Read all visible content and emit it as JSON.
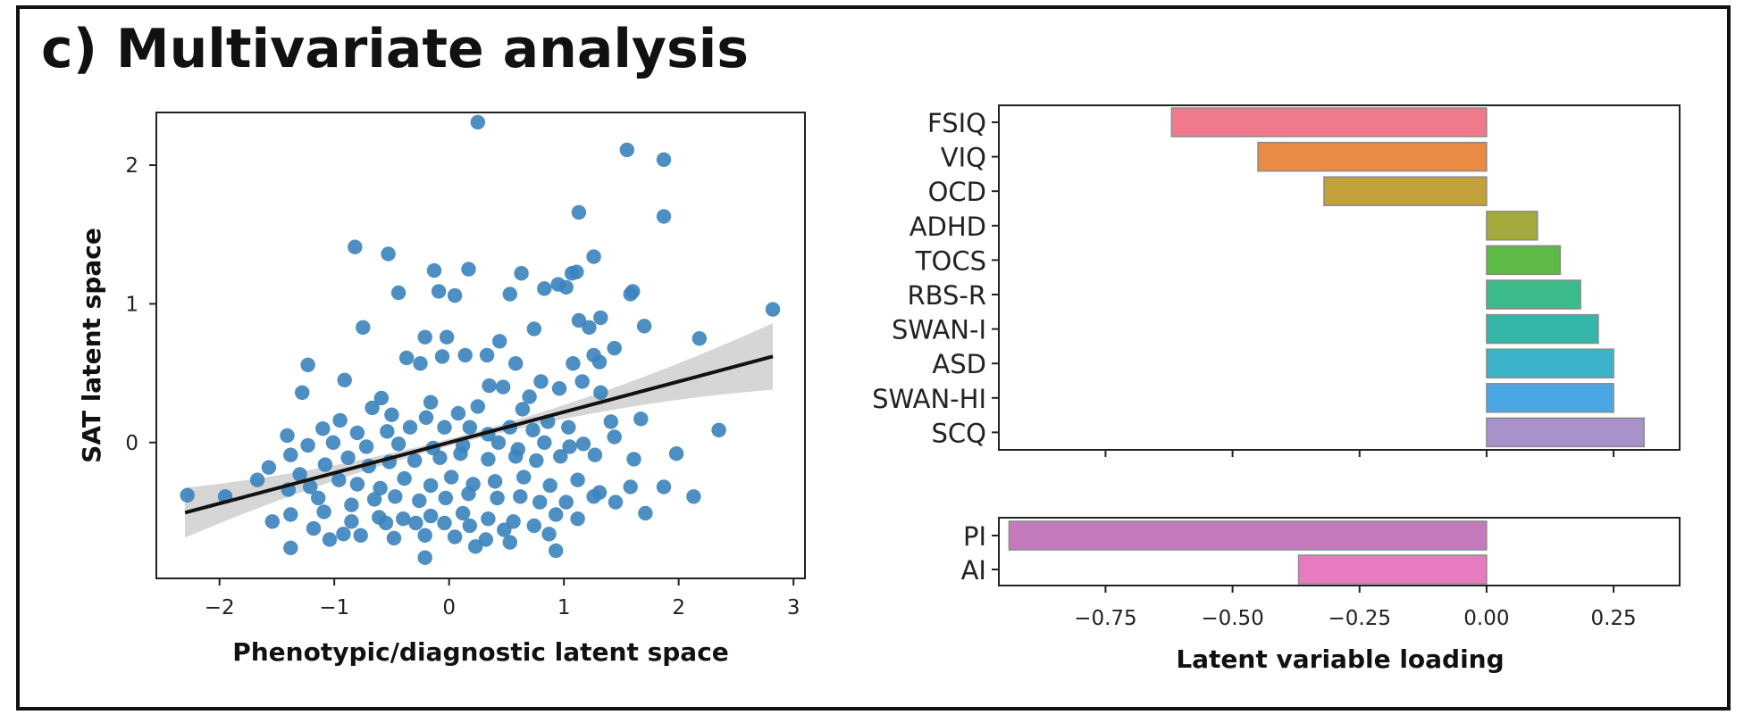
{
  "panel_title": "c) Multivariate analysis",
  "chart_data": [
    {
      "type": "scatter",
      "xlabel": "Phenotypic/diagnostic latent space",
      "ylabel": "SAT latent space",
      "xlim": [
        -2.55,
        3.1
      ],
      "ylim": [
        -0.98,
        2.38
      ],
      "xticks": [
        -2,
        -1,
        0,
        1,
        2,
        3
      ],
      "xtick_labels": [
        "−2",
        "−1",
        "0",
        "1",
        "2",
        "3"
      ],
      "yticks": [
        0,
        1,
        2
      ],
      "ytick_labels": [
        "0",
        "1",
        "2"
      ],
      "grid": false,
      "point_color": "#3a83bd",
      "regression": {
        "slope": 0.22,
        "intercept": 0.0,
        "line_color": "#111111",
        "band_color": "#cfcfcf"
      },
      "points": [
        [
          0.25,
          2.31
        ],
        [
          1.55,
          2.11
        ],
        [
          1.87,
          2.04
        ],
        [
          1.87,
          1.63
        ],
        [
          1.13,
          1.66
        ],
        [
          -0.82,
          1.41
        ],
        [
          -0.53,
          1.36
        ],
        [
          -0.13,
          1.24
        ],
        [
          0.17,
          1.25
        ],
        [
          0.63,
          1.22
        ],
        [
          1.07,
          1.22
        ],
        [
          1.26,
          1.34
        ],
        [
          1.6,
          1.09
        ],
        [
          -0.44,
          1.08
        ],
        [
          -0.09,
          1.09
        ],
        [
          0.05,
          1.06
        ],
        [
          0.53,
          1.07
        ],
        [
          0.83,
          1.11
        ],
        [
          0.95,
          1.14
        ],
        [
          1.02,
          1.12
        ],
        [
          1.11,
          1.23
        ],
        [
          1.58,
          1.07
        ],
        [
          2.82,
          0.96
        ],
        [
          1.32,
          0.9
        ],
        [
          1.13,
          0.88
        ],
        [
          1.22,
          0.83
        ],
        [
          1.7,
          0.84
        ],
        [
          -0.75,
          0.83
        ],
        [
          -0.21,
          0.76
        ],
        [
          -0.02,
          0.76
        ],
        [
          0.44,
          0.73
        ],
        [
          0.74,
          0.82
        ],
        [
          2.18,
          0.75
        ],
        [
          -0.37,
          0.61
        ],
        [
          -0.25,
          0.57
        ],
        [
          -0.06,
          0.62
        ],
        [
          0.14,
          0.63
        ],
        [
          0.33,
          0.63
        ],
        [
          0.58,
          0.57
        ],
        [
          1.08,
          0.57
        ],
        [
          1.26,
          0.63
        ],
        [
          1.31,
          0.58
        ],
        [
          1.44,
          0.68
        ],
        [
          -1.23,
          0.56
        ],
        [
          -0.91,
          0.45
        ],
        [
          -1.28,
          0.36
        ],
        [
          -0.59,
          0.32
        ],
        [
          -0.16,
          0.29
        ],
        [
          0.35,
          0.41
        ],
        [
          0.47,
          0.4
        ],
        [
          0.8,
          0.44
        ],
        [
          0.96,
          0.39
        ],
        [
          1.16,
          0.44
        ],
        [
          1.32,
          0.36
        ],
        [
          0.7,
          0.33
        ],
        [
          -0.67,
          0.25
        ],
        [
          -0.5,
          0.2
        ],
        [
          -0.2,
          0.18
        ],
        [
          0.08,
          0.21
        ],
        [
          0.25,
          0.26
        ],
        [
          0.64,
          0.24
        ],
        [
          0.86,
          0.15
        ],
        [
          1.41,
          0.15
        ],
        [
          1.67,
          0.17
        ],
        [
          -0.95,
          0.16
        ],
        [
          -1.1,
          0.1
        ],
        [
          -0.8,
          0.07
        ],
        [
          -0.54,
          0.08
        ],
        [
          -0.34,
          0.11
        ],
        [
          -0.04,
          0.11
        ],
        [
          0.18,
          0.11
        ],
        [
          0.34,
          0.06
        ],
        [
          0.53,
          0.11
        ],
        [
          0.73,
          0.09
        ],
        [
          1.04,
          0.11
        ],
        [
          1.44,
          0.04
        ],
        [
          2.35,
          0.09
        ],
        [
          -1.41,
          0.05
        ],
        [
          -1.23,
          -0.02
        ],
        [
          -1.01,
          0.0
        ],
        [
          -0.72,
          -0.03
        ],
        [
          -0.44,
          -0.01
        ],
        [
          -0.14,
          -0.04
        ],
        [
          0.12,
          -0.02
        ],
        [
          0.43,
          0.0
        ],
        [
          0.6,
          -0.05
        ],
        [
          0.83,
          0.0
        ],
        [
          1.05,
          -0.03
        ],
        [
          1.17,
          -0.01
        ],
        [
          -1.57,
          -0.18
        ],
        [
          -1.38,
          -0.09
        ],
        [
          -1.3,
          -0.23
        ],
        [
          -1.08,
          -0.16
        ],
        [
          -0.88,
          -0.11
        ],
        [
          -0.7,
          -0.17
        ],
        [
          -0.52,
          -0.14
        ],
        [
          -0.3,
          -0.13
        ],
        [
          -0.08,
          -0.11
        ],
        [
          0.1,
          -0.08
        ],
        [
          0.34,
          -0.12
        ],
        [
          0.58,
          -0.1
        ],
        [
          0.76,
          -0.13
        ],
        [
          0.97,
          -0.1
        ],
        [
          1.27,
          -0.09
        ],
        [
          1.61,
          -0.12
        ],
        [
          1.98,
          -0.08
        ],
        [
          -1.67,
          -0.27
        ],
        [
          -1.4,
          -0.34
        ],
        [
          -1.21,
          -0.32
        ],
        [
          -0.96,
          -0.27
        ],
        [
          -0.8,
          -0.3
        ],
        [
          -0.6,
          -0.33
        ],
        [
          -0.39,
          -0.26
        ],
        [
          -0.16,
          -0.31
        ],
        [
          0.02,
          -0.25
        ],
        [
          0.21,
          -0.3
        ],
        [
          0.4,
          -0.28
        ],
        [
          0.65,
          -0.25
        ],
        [
          0.88,
          -0.31
        ],
        [
          1.12,
          -0.27
        ],
        [
          1.31,
          -0.36
        ],
        [
          1.58,
          -0.32
        ],
        [
          1.87,
          -0.32
        ],
        [
          -2.28,
          -0.38
        ],
        [
          -1.95,
          -0.39
        ],
        [
          -1.14,
          -0.4
        ],
        [
          -0.85,
          -0.45
        ],
        [
          -0.65,
          -0.41
        ],
        [
          -0.47,
          -0.39
        ],
        [
          -0.26,
          -0.42
        ],
        [
          -0.03,
          -0.4
        ],
        [
          0.17,
          -0.37
        ],
        [
          0.42,
          -0.4
        ],
        [
          0.62,
          -0.39
        ],
        [
          0.79,
          -0.43
        ],
        [
          1.02,
          -0.43
        ],
        [
          1.26,
          -0.39
        ],
        [
          1.45,
          -0.43
        ],
        [
          2.13,
          -0.39
        ],
        [
          -1.38,
          -0.52
        ],
        [
          -1.09,
          -0.5
        ],
        [
          -0.85,
          -0.57
        ],
        [
          -0.61,
          -0.54
        ],
        [
          -0.4,
          -0.55
        ],
        [
          -0.16,
          -0.53
        ],
        [
          0.12,
          -0.51
        ],
        [
          0.34,
          -0.55
        ],
        [
          0.56,
          -0.57
        ],
        [
          0.93,
          -0.52
        ],
        [
          1.12,
          -0.55
        ],
        [
          1.71,
          -0.51
        ],
        [
          -1.54,
          -0.57
        ],
        [
          -1.18,
          -0.62
        ],
        [
          -0.92,
          -0.66
        ],
        [
          -0.55,
          -0.58
        ],
        [
          -0.29,
          -0.58
        ],
        [
          -0.04,
          -0.58
        ],
        [
          0.18,
          -0.6
        ],
        [
          0.48,
          -0.63
        ],
        [
          0.74,
          -0.6
        ],
        [
          0.87,
          -0.66
        ],
        [
          -0.77,
          -0.67
        ],
        [
          -1.04,
          -0.7
        ],
        [
          -0.48,
          -0.69
        ],
        [
          -0.21,
          -0.67
        ],
        [
          0.05,
          -0.68
        ],
        [
          0.32,
          -0.7
        ],
        [
          -1.38,
          -0.76
        ],
        [
          0.23,
          -0.75
        ],
        [
          0.53,
          -0.72
        ],
        [
          0.93,
          -0.78
        ],
        [
          -0.21,
          -0.83
        ]
      ]
    },
    {
      "type": "bar",
      "orientation": "horizontal",
      "xlabel": "Latent variable loading",
      "xlim": [
        -0.96,
        0.38
      ],
      "xticks": [
        -0.75,
        -0.5,
        -0.25,
        0.0,
        0.25
      ],
      "xtick_labels": [
        "−0.75",
        "−0.50",
        "−0.25",
        "0.00",
        "0.25"
      ],
      "groups": [
        {
          "categories": [
            "FSIQ",
            "VIQ",
            "OCD",
            "ADHD",
            "TOCS",
            "RBS-R",
            "SWAN-I",
            "ASD",
            "SWAN-HI",
            "SCQ"
          ],
          "values": [
            -0.62,
            -0.45,
            -0.32,
            0.1,
            0.145,
            0.185,
            0.22,
            0.25,
            0.25,
            0.31
          ],
          "colors": [
            "#f07a8c",
            "#ea8b45",
            "#c2a13b",
            "#a3a93a",
            "#5dba44",
            "#3cbb8a",
            "#35b6a8",
            "#3cb3c9",
            "#4aa6e4",
            "#a991cc"
          ]
        },
        {
          "categories": [
            "PI",
            "AI"
          ],
          "values": [
            -0.94,
            -0.37
          ],
          "colors": [
            "#c47bbd",
            "#e67cbf"
          ]
        }
      ]
    }
  ]
}
